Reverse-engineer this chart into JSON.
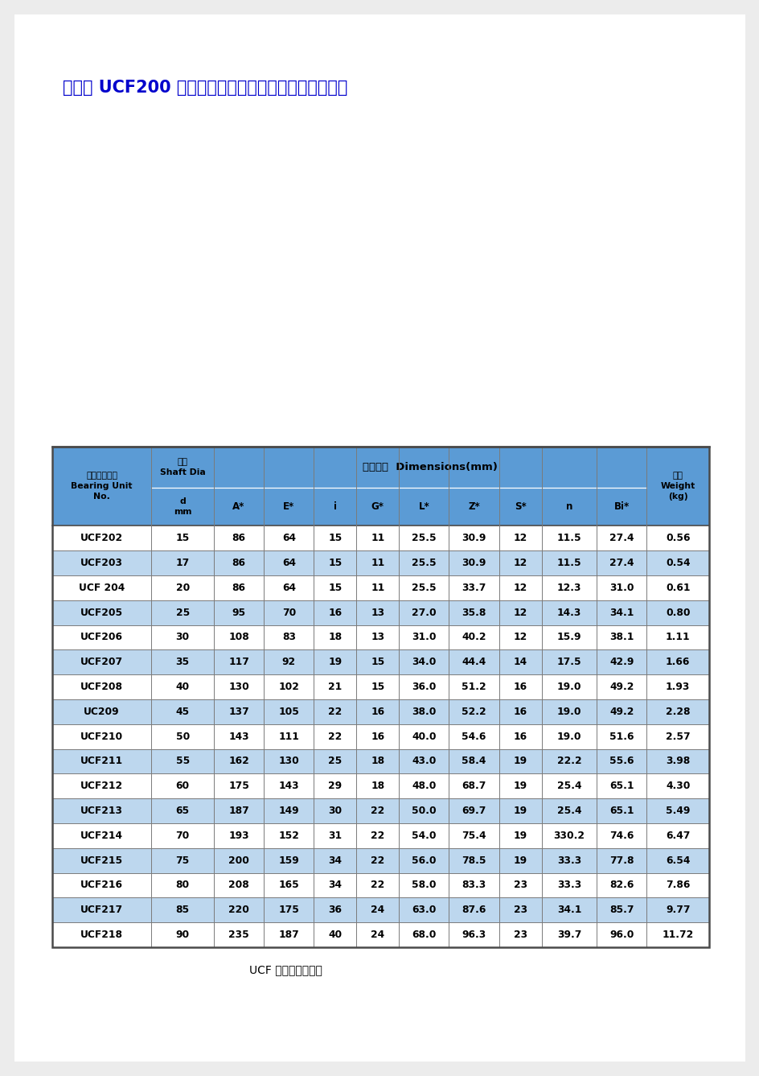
{
  "title": "方形座 UCF200 系列轴承规格、性能、型号对照参数表",
  "title_color": "#0000CC",
  "title_fontsize": 15,
  "footer_text": "UCF 系列产品说明：",
  "header_bg": "#5B9BD5",
  "row_bg_white": "#FFFFFF",
  "row_bg_blue": "#BDD7EE",
  "dimensions_label": "外型尺寸  Dimensions(mm)",
  "header1_col0": "带座轴承型号\nBearing Unit\nNo.",
  "header1_col1_line1": "轴径",
  "header1_col1_line2": "Shaft Dia",
  "header1_col1_line3": "d",
  "header1_col1_line4": "mm",
  "header1_last": "重量\nWeight\n(kg)",
  "sub_headers": [
    "A*",
    "E*",
    "i",
    "G*",
    "L*",
    "Z*",
    "S*",
    "n",
    "Bi*"
  ],
  "rows": [
    [
      "UCF202",
      "15",
      "86",
      "64",
      "15",
      "11",
      "25.5",
      "30.9",
      "12",
      "11.5",
      "27.4",
      "0.56"
    ],
    [
      "UCF203",
      "17",
      "86",
      "64",
      "15",
      "11",
      "25.5",
      "30.9",
      "12",
      "11.5",
      "27.4",
      "0.54"
    ],
    [
      "UCF 204",
      "20",
      "86",
      "64",
      "15",
      "11",
      "25.5",
      "33.7",
      "12",
      "12.3",
      "31.0",
      "0.61"
    ],
    [
      "UCF205",
      "25",
      "95",
      "70",
      "16",
      "13",
      "27.0",
      "35.8",
      "12",
      "14.3",
      "34.1",
      "0.80"
    ],
    [
      "UCF206",
      "30",
      "108",
      "83",
      "18",
      "13",
      "31.0",
      "40.2",
      "12",
      "15.9",
      "38.1",
      "1.11"
    ],
    [
      "UCF207",
      "35",
      "117",
      "92",
      "19",
      "15",
      "34.0",
      "44.4",
      "14",
      "17.5",
      "42.9",
      "1.66"
    ],
    [
      "UCF208",
      "40",
      "130",
      "102",
      "21",
      "15",
      "36.0",
      "51.2",
      "16",
      "19.0",
      "49.2",
      "1.93"
    ],
    [
      "UC209",
      "45",
      "137",
      "105",
      "22",
      "16",
      "38.0",
      "52.2",
      "16",
      "19.0",
      "49.2",
      "2.28"
    ],
    [
      "UCF210",
      "50",
      "143",
      "111",
      "22",
      "16",
      "40.0",
      "54.6",
      "16",
      "19.0",
      "51.6",
      "2.57"
    ],
    [
      "UCF211",
      "55",
      "162",
      "130",
      "25",
      "18",
      "43.0",
      "58.4",
      "19",
      "22.2",
      "55.6",
      "3.98"
    ],
    [
      "UCF212",
      "60",
      "175",
      "143",
      "29",
      "18",
      "48.0",
      "68.7",
      "19",
      "25.4",
      "65.1",
      "4.30"
    ],
    [
      "UCF213",
      "65",
      "187",
      "149",
      "30",
      "22",
      "50.0",
      "69.7",
      "19",
      "25.4",
      "65.1",
      "5.49"
    ],
    [
      "UCF214",
      "70",
      "193",
      "152",
      "31",
      "22",
      "54.0",
      "75.4",
      "19",
      "330.2",
      "74.6",
      "6.47"
    ],
    [
      "UCF215",
      "75",
      "200",
      "159",
      "34",
      "22",
      "56.0",
      "78.5",
      "19",
      "33.3",
      "77.8",
      "6.54"
    ],
    [
      "UCF216",
      "80",
      "208",
      "165",
      "34",
      "22",
      "58.0",
      "83.3",
      "23",
      "33.3",
      "82.6",
      "7.86"
    ],
    [
      "UCF217",
      "85",
      "220",
      "175",
      "36",
      "24",
      "63.0",
      "87.6",
      "23",
      "34.1",
      "85.7",
      "9.77"
    ],
    [
      "UCF218",
      "90",
      "235",
      "187",
      "40",
      "24",
      "68.0",
      "96.3",
      "23",
      "39.7",
      "96.0",
      "11.72"
    ]
  ],
  "col_widths_rel": [
    1.35,
    0.85,
    0.68,
    0.68,
    0.58,
    0.58,
    0.68,
    0.68,
    0.58,
    0.75,
    0.68,
    0.85
  ],
  "page_bg": "#ECECEC",
  "border_color": "#4A4A4A",
  "grid_color": "#7A7A7A"
}
